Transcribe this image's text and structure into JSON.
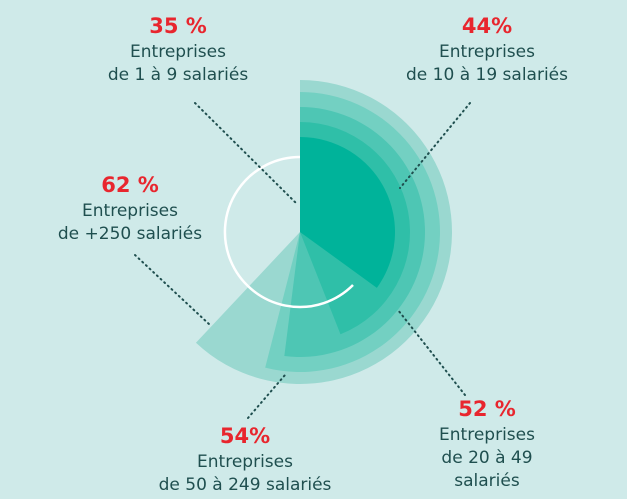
{
  "chart_data": {
    "type": "polar-sector",
    "categories": [
      [
        "Entreprises",
        "de 1 à 9 salariés"
      ],
      [
        "Entreprises",
        "de 10 à 19 salariés"
      ],
      [
        "Entreprises",
        "de 20 à 49",
        "salariés"
      ],
      [
        "Entreprises",
        "de 50 à 249 salariés"
      ],
      [
        "Entreprises",
        "de +250 salariés"
      ]
    ],
    "values": [
      35,
      44,
      52,
      54,
      62
    ],
    "value_labels": [
      "35 %",
      "44%",
      "52 %",
      "54%",
      "62 %"
    ],
    "colors": [
      "#00b39a",
      "#2fbfa8",
      "#4ec6b4",
      "#73d0c2",
      "#9ad8d0"
    ],
    "label_color": "#e8262e"
  }
}
